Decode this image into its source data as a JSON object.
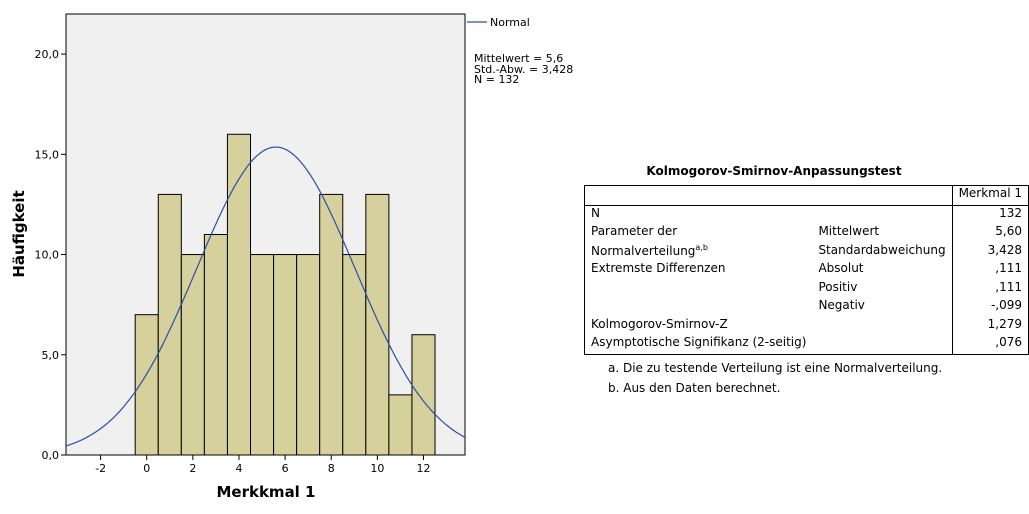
{
  "chart_data": {
    "type": "bar",
    "subtype": "histogram",
    "xlabel": "Merkkmal 1",
    "ylabel": "Häufigkeit",
    "xlim": [
      -3.5,
      13.8
    ],
    "ylim": [
      0,
      22
    ],
    "x_ticks": [
      "-2",
      "0",
      "2",
      "4",
      "6",
      "8",
      "10",
      "12"
    ],
    "x_tick_values": [
      -2,
      0,
      2,
      4,
      6,
      8,
      10,
      12
    ],
    "y_ticks": [
      "0,0",
      "5,0",
      "10,0",
      "15,0",
      "20,0"
    ],
    "y_tick_values": [
      0,
      5,
      10,
      15,
      20
    ],
    "bins": [
      0,
      1,
      2,
      3,
      4,
      5,
      6,
      7,
      8,
      9,
      10,
      11,
      12
    ],
    "values": [
      7,
      13,
      10,
      11,
      16,
      10,
      10,
      10,
      13,
      10,
      13,
      3,
      6
    ],
    "bar_color": "#d5d09c",
    "plot_bg": "#f0f0f0",
    "curve": {
      "name": "Normal",
      "mean": 5.6,
      "sd": 3.428,
      "n": 132,
      "bin_width": 1,
      "color": "#2b4fa8"
    },
    "legend": {
      "position": "top-right",
      "entries": [
        "Normal"
      ]
    },
    "stats": [
      "Mittelwert = 5,6",
      "Std.-Abw. = 3,428",
      "N = 132"
    ]
  },
  "ks_test": {
    "title": "Kolmogorov-Smirnov-Anpassungstest",
    "column_header": "Merkmal 1",
    "rows": [
      {
        "label": "N",
        "sub": "",
        "value": "132"
      },
      {
        "label": "Parameter der",
        "sub": "Mittelwert",
        "value": "5,60"
      },
      {
        "label": "Normalverteilung",
        "sup": "a,b",
        "sub": "Standardabweichung",
        "value": "3,428"
      },
      {
        "label": "Extremste Differenzen",
        "sub": "Absolut",
        "value": ",111"
      },
      {
        "label": "",
        "sub": "Positiv",
        "value": ",111"
      },
      {
        "label": "",
        "sub": "Negativ",
        "value": "-,099"
      },
      {
        "label": "Kolmogorov-Smirnov-Z",
        "sub": "",
        "value": "1,279"
      },
      {
        "label": "Asymptotische Signifikanz (2-seitig)",
        "sub": "",
        "value": ",076"
      }
    ],
    "footnotes": [
      "a. Die zu testende Verteilung ist eine Normalverteilung.",
      "b. Aus den Daten berechnet."
    ]
  }
}
